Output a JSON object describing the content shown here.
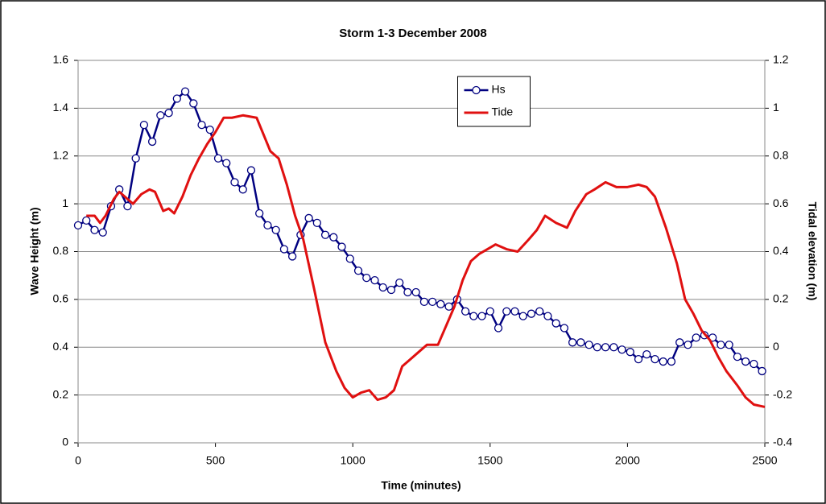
{
  "chart_data": {
    "type": "line",
    "title": "Storm 1-3 December 2008",
    "xlabel": "Time (minutes)",
    "ylabel": "Wave Height (m)",
    "y2label": "Tidal elevation (m)",
    "xlim": [
      0,
      2500
    ],
    "xticks": [
      0,
      500,
      1000,
      1500,
      2000,
      2500
    ],
    "ylim": [
      0,
      1.6
    ],
    "yticks": [
      0,
      0.2,
      0.4,
      0.6,
      0.8,
      1,
      1.2,
      1.4,
      1.6
    ],
    "y2lim": [
      -0.4,
      1.2
    ],
    "y2ticks": [
      -0.4,
      -0.2,
      0,
      0.2,
      0.4,
      0.6,
      0.8,
      1,
      1.2
    ],
    "grid": true,
    "legend": "upper center",
    "series": [
      {
        "name": "Hs",
        "color": "#000080",
        "marker": true,
        "x": [
          0,
          30,
          60,
          90,
          120,
          150,
          180,
          210,
          240,
          270,
          300,
          330,
          360,
          390,
          420,
          450,
          480,
          510,
          540,
          570,
          600,
          630,
          660,
          690,
          720,
          750,
          780,
          810,
          840,
          870,
          900,
          930,
          960,
          990,
          1020,
          1050,
          1080,
          1110,
          1140,
          1170,
          1200,
          1230,
          1260,
          1290,
          1320,
          1350,
          1380,
          1410,
          1440,
          1470,
          1500,
          1530,
          1560,
          1590,
          1620,
          1650,
          1680,
          1710,
          1740,
          1770,
          1800,
          1830,
          1860,
          1890,
          1920,
          1950,
          1980,
          2010,
          2040,
          2070,
          2100,
          2130,
          2160,
          2190,
          2220,
          2250,
          2280,
          2310,
          2340,
          2370,
          2400,
          2430,
          2460,
          2490
        ],
        "values": [
          0.91,
          0.93,
          0.89,
          0.88,
          0.99,
          1.06,
          0.99,
          1.19,
          1.33,
          1.26,
          1.37,
          1.38,
          1.44,
          1.47,
          1.42,
          1.33,
          1.31,
          1.19,
          1.17,
          1.09,
          1.06,
          1.14,
          0.96,
          0.91,
          0.89,
          0.81,
          0.78,
          0.87,
          0.94,
          0.92,
          0.87,
          0.86,
          0.82,
          0.77,
          0.72,
          0.69,
          0.68,
          0.65,
          0.64,
          0.67,
          0.63,
          0.63,
          0.59,
          0.59,
          0.58,
          0.57,
          0.6,
          0.55,
          0.53,
          0.53,
          0.55,
          0.48,
          0.55,
          0.55,
          0.53,
          0.54,
          0.55,
          0.53,
          0.5,
          0.48,
          0.42,
          0.42,
          0.41,
          0.4,
          0.4,
          0.4,
          0.39,
          0.38,
          0.35,
          0.37,
          0.35,
          0.34,
          0.34,
          0.42,
          0.41,
          0.44,
          0.45,
          0.44,
          0.41,
          0.41,
          0.36,
          0.34,
          0.33,
          0.3
        ]
      },
      {
        "name": "Tide",
        "color": "#e01010",
        "marker": false,
        "axis": "y2",
        "x": [
          30,
          60,
          80,
          100,
          130,
          150,
          170,
          200,
          230,
          260,
          280,
          310,
          330,
          350,
          380,
          410,
          440,
          470,
          500,
          530,
          560,
          600,
          650,
          700,
          730,
          760,
          790,
          820,
          860,
          900,
          940,
          970,
          1000,
          1030,
          1060,
          1090,
          1120,
          1150,
          1180,
          1210,
          1240,
          1270,
          1310,
          1340,
          1370,
          1400,
          1430,
          1460,
          1490,
          1520,
          1560,
          1600,
          1640,
          1670,
          1700,
          1740,
          1780,
          1810,
          1850,
          1880,
          1920,
          1960,
          2000,
          2040,
          2070,
          2100,
          2140,
          2180,
          2210,
          2240,
          2270,
          2300,
          2330,
          2360,
          2400,
          2430,
          2460,
          2500
        ],
        "values": [
          0.55,
          0.55,
          0.52,
          0.55,
          0.62,
          0.65,
          0.63,
          0.6,
          0.64,
          0.66,
          0.65,
          0.57,
          0.58,
          0.56,
          0.63,
          0.72,
          0.79,
          0.85,
          0.9,
          0.96,
          0.96,
          0.97,
          0.96,
          0.82,
          0.79,
          0.68,
          0.55,
          0.45,
          0.24,
          0.02,
          -0.1,
          -0.17,
          -0.21,
          -0.19,
          -0.18,
          -0.22,
          -0.21,
          -0.18,
          -0.08,
          -0.05,
          -0.02,
          0.01,
          0.01,
          0.09,
          0.17,
          0.28,
          0.36,
          0.39,
          0.41,
          0.43,
          0.41,
          0.4,
          0.45,
          0.49,
          0.55,
          0.52,
          0.5,
          0.57,
          0.64,
          0.66,
          0.69,
          0.67,
          0.67,
          0.68,
          0.67,
          0.63,
          0.5,
          0.35,
          0.2,
          0.14,
          0.07,
          0.03,
          -0.04,
          -0.1,
          -0.16,
          -0.21,
          -0.24,
          -0.25
        ]
      }
    ]
  }
}
